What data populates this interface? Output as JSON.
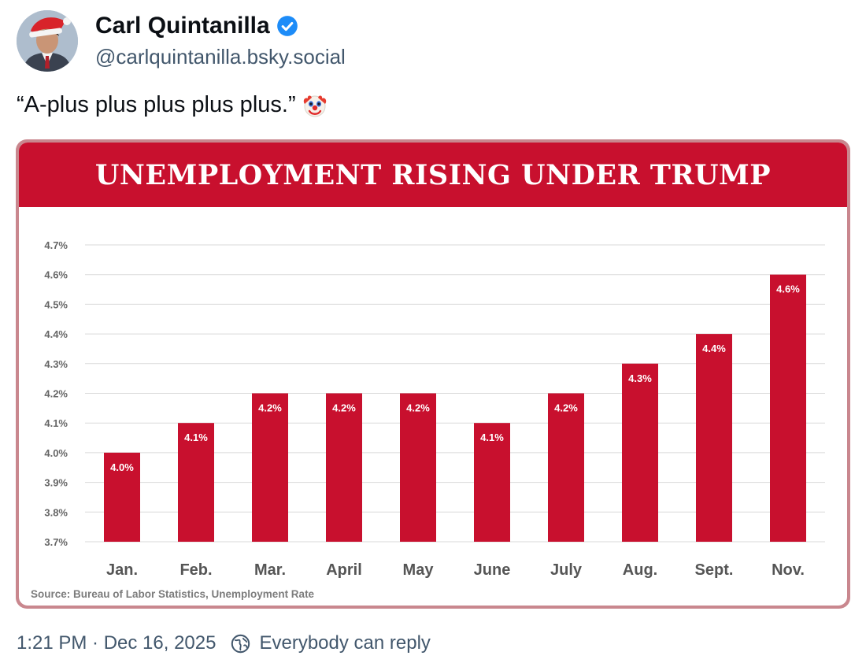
{
  "post": {
    "author_name": "Carl Quintanilla",
    "handle": "@carlquintanilla.bsky.social",
    "text": "“A-plus plus plus plus plus.”",
    "emoji": "clown-face-icon",
    "timestamp": "1:21 PM · Dec 16, 2025",
    "reply_setting": "Everybody can reply"
  },
  "colors": {
    "bar": "#c8102e",
    "banner": "#c8102e",
    "verified": "#1d8cf8"
  },
  "chart_data": {
    "type": "bar",
    "title": "UNEMPLOYMENT RISING UNDER TRUMP",
    "categories": [
      "Jan.",
      "Feb.",
      "Mar.",
      "April",
      "May",
      "June",
      "July",
      "Aug.",
      "Sept.",
      "Nov."
    ],
    "values": [
      4.0,
      4.1,
      4.2,
      4.2,
      4.2,
      4.1,
      4.2,
      4.3,
      4.4,
      4.6
    ],
    "data_labels": [
      "4.0%",
      "4.1%",
      "4.2%",
      "4.2%",
      "4.2%",
      "4.1%",
      "4.2%",
      "4.3%",
      "4.4%",
      "4.6%"
    ],
    "yticks": [
      3.7,
      3.8,
      3.9,
      4.0,
      4.1,
      4.2,
      4.3,
      4.4,
      4.5,
      4.6,
      4.7
    ],
    "ytick_labels": [
      "3.7%",
      "3.8%",
      "3.9%",
      "4.0%",
      "4.1%",
      "4.2%",
      "4.3%",
      "4.4%",
      "4.5%",
      "4.6%",
      "4.7%"
    ],
    "ylim": [
      3.7,
      4.7
    ],
    "grid": true,
    "xlabel": "",
    "ylabel": "",
    "source": "Source: Bureau of Labor Statistics, Unemployment Rate"
  }
}
